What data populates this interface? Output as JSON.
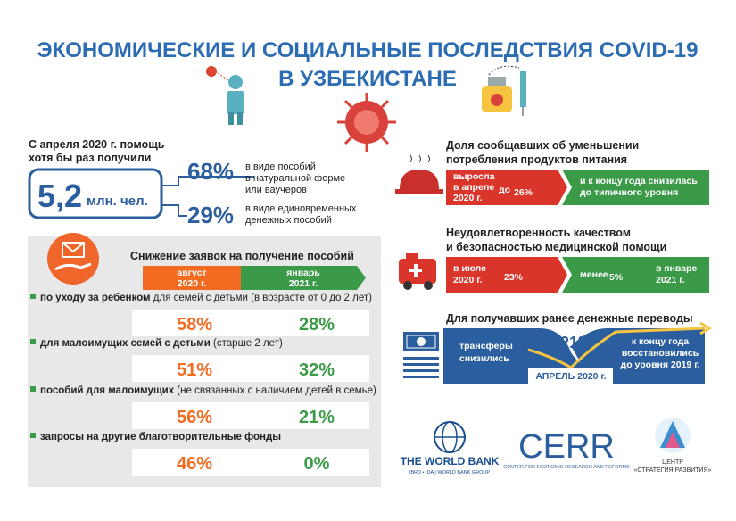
{
  "header": {
    "title_lines": [
      "ЭКОНОМИЧЕСКИЕ  И СОЦИАЛЬНЫЕ ПОСЛЕДСТВИЯ COVID-19",
      "В УЗБЕКИСТАНЕ"
    ]
  },
  "aid": {
    "intro_lines": [
      "С апреля 2020 г. помощь",
      "хотя бы раз получили"
    ],
    "total_number": "5,2",
    "total_unit": "млн. чел.",
    "items": [
      {
        "pct": "68%",
        "lines": [
          "в виде пособий",
          "в натуральной форме",
          "или ваучеров"
        ]
      },
      {
        "pct": "29%",
        "lines": [
          "в виде единовременных",
          "денежных пособий"
        ]
      }
    ]
  },
  "applications": {
    "title": "Снижение заявок на получение пособий",
    "col_aug": [
      "август",
      "2020 г."
    ],
    "col_jan": [
      "январь",
      "2021 г."
    ],
    "rows": [
      {
        "label_bold": "по уходу за ребенком",
        "label_rest": " для семей с детьми (в возрасте от 0 до 2 лет)",
        "aug": "58%",
        "jan": "28%"
      },
      {
        "label_bold": "для малоимущих семей с детьми",
        "label_rest": " (старше 2 лет)",
        "aug": "51%",
        "jan": "32%"
      },
      {
        "label_bold": "пособий для малоимущих",
        "label_rest": " (не связанных с наличием детей в семье)",
        "aug": "56%",
        "jan": "21%"
      },
      {
        "label_bold": "запросы на другие благотворительные фонды",
        "aug": "46%",
        "jan": "0%"
      }
    ]
  },
  "food": {
    "title_lines": [
      "Доля сообщавших об уменьшении",
      "потребления продуктов питания"
    ],
    "rose_lines": [
      "выросла",
      "в апреле",
      "2020 г."
    ],
    "to": "до",
    "pct": "26%",
    "fall_lines": [
      "и к концу года снизилась",
      "до типичного уровня"
    ]
  },
  "health": {
    "title_lines": [
      "Неудовлетворенность качеством",
      "и безопасностью медицинской помощи"
    ],
    "from_lines": [
      "в июле",
      "2020 г."
    ],
    "from_pct": "23%",
    "less": "менее",
    "to_pct": "5%",
    "to_lines": [
      "в январе",
      "2021 г."
    ]
  },
  "remittances": {
    "title": "Для получавших ранее денежные переводы",
    "left_lines": [
      "трансферы",
      "снизились"
    ],
    "on": "на",
    "pct": "21%",
    "date": "АПРЕЛЬ 2020 г.",
    "right_lines": [
      "к концу года",
      "восстановились",
      "до уровня 2019 г."
    ]
  },
  "logos": {
    "world_bank": {
      "name": "THE WORLD BANK",
      "sub": "IBRD • IDA | WORLD BANK GROUP"
    },
    "cerr": {
      "name": "CERR",
      "sub": "CENTER FOR ECONOMIC RESEARCH AND REFORMS"
    },
    "strategy": {
      "lines": [
        "ЦЕНТР",
        "«СТРАТЕГИЯ РАЗВИТИЯ»"
      ]
    }
  }
}
